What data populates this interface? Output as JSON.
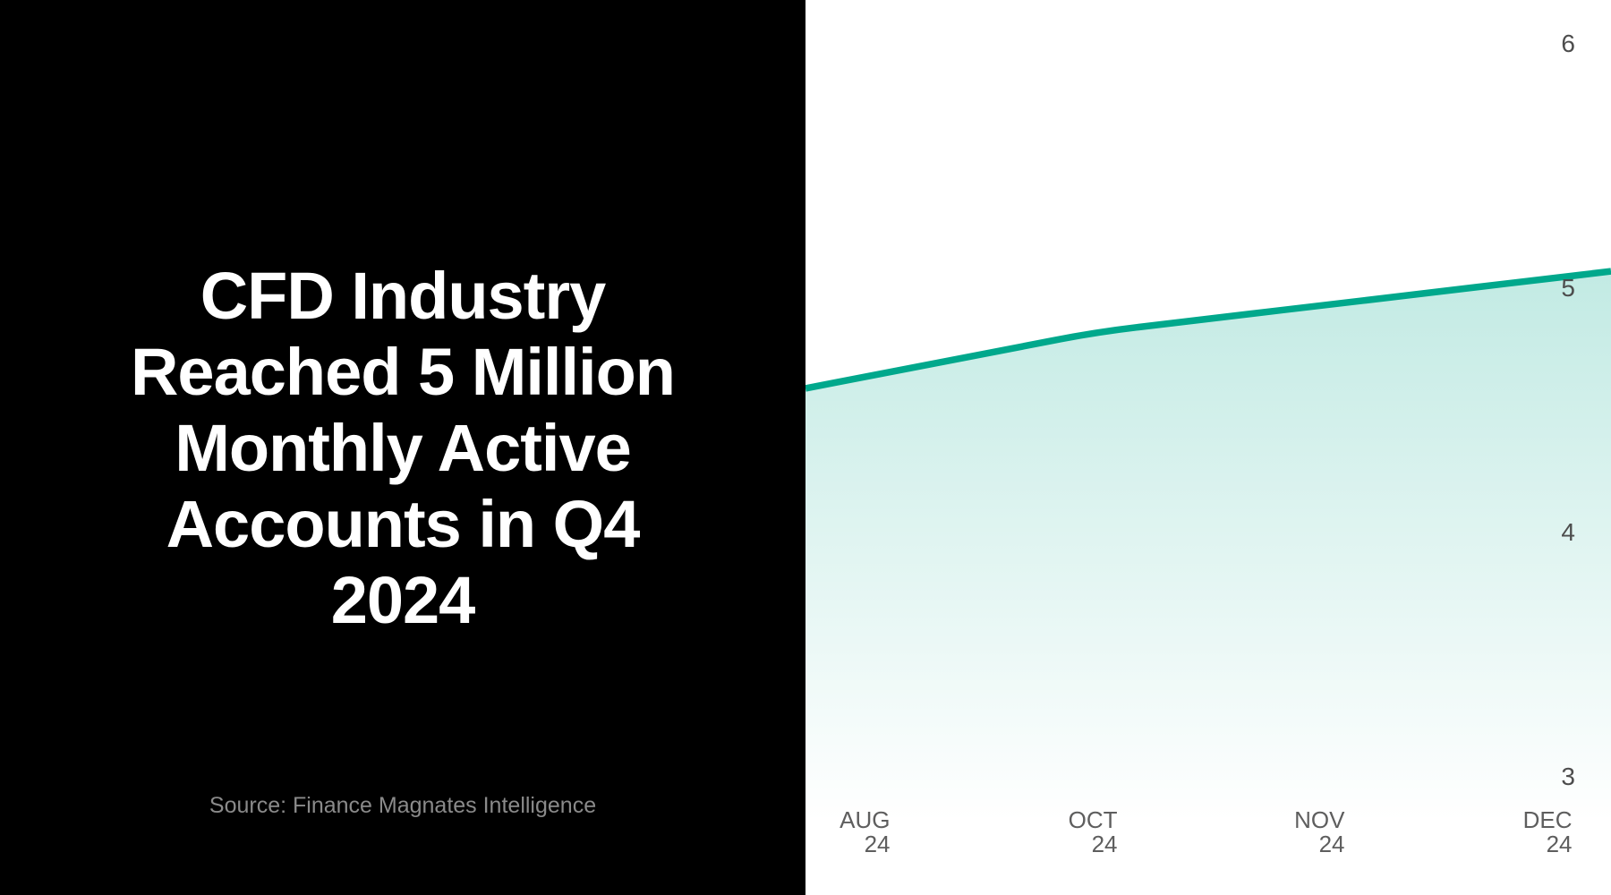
{
  "left_panel": {
    "title_lines": [
      "CFD Industry",
      "Reached 5 Million",
      "Monthly Active",
      "Accounts in Q4",
      "2024"
    ],
    "source": "Source: Finance Magnates Intelligence"
  },
  "colors": {
    "panel_bg": "#000000",
    "title_text": "#ffffff",
    "source_text": "#8a8a8a",
    "chart_bg": "#ffffff",
    "line": "#00A88C",
    "area_fill_base": "#00A88C",
    "y_tick_text": "#4d4d4d",
    "x_tick_text": "#5e5e5e"
  },
  "chart_data": {
    "type": "area",
    "series_name": "Monthly Active Accounts (millions)",
    "categories": [
      "AUG 24",
      "OCT 24",
      "NOV 24",
      "DEC 24"
    ],
    "x_tick_lines": [
      [
        "AUG",
        "24"
      ],
      [
        "OCT",
        "24"
      ],
      [
        "NOV",
        "24"
      ],
      [
        "DEC",
        "24"
      ]
    ],
    "values": [
      4.64,
      4.82,
      4.93,
      5.04
    ],
    "ylim": [
      3,
      6
    ],
    "y_ticks": [
      6,
      5,
      4,
      3
    ],
    "y_axis_side": "right",
    "grid": false,
    "line_color": "#00A88C",
    "fill_style": "vertical gradient, teal fading to white",
    "title": "CFD Industry Reached 5 Million Monthly Active Accounts in Q4 2024"
  }
}
